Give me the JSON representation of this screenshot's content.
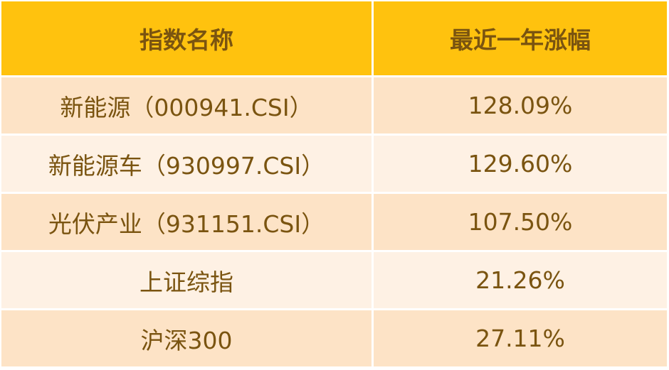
{
  "table": {
    "header": [
      "指数名称",
      "最近一年涨幅"
    ],
    "rows": [
      [
        "新能源（000941.CSI）",
        "128.09%"
      ],
      [
        "新能源车（930997.CSI）",
        "129.60%"
      ],
      [
        "光伏产业（931151.CSI）",
        "107.50%"
      ],
      [
        "上证综指",
        "21.26%"
      ],
      [
        "沪深300",
        "27.11%"
      ]
    ]
  }
}
